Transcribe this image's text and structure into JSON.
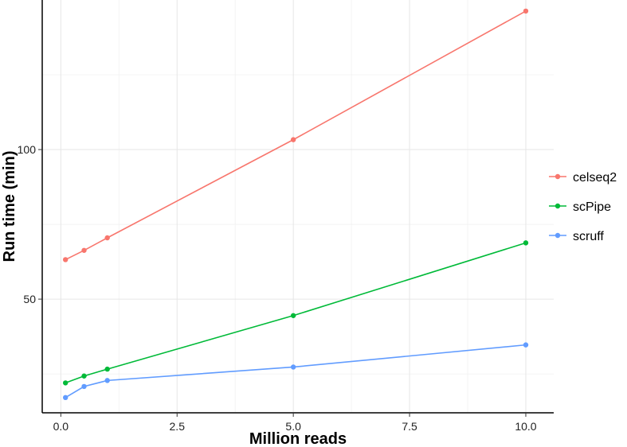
{
  "chart_data": {
    "type": "line",
    "title": "",
    "xlabel": "Million reads",
    "ylabel": "Run time (min)",
    "xlim": [
      -0.4,
      10.6
    ],
    "ylim": [
      12,
      150
    ],
    "xticks": [
      0.0,
      2.5,
      5.0,
      7.5,
      10.0
    ],
    "xtick_labels": [
      "0.0",
      "2.5",
      "5.0",
      "7.5",
      "10.0"
    ],
    "yticks": [
      50,
      100
    ],
    "ytick_labels": [
      "50",
      "100"
    ],
    "grid": true,
    "legend_position": "right",
    "series": [
      {
        "name": "celseq2",
        "color": "#F8766D",
        "x": [
          0.1,
          0.5,
          1.0,
          5.0,
          10.0
        ],
        "y": [
          63.2,
          66.3,
          70.5,
          103.3,
          146.3
        ]
      },
      {
        "name": "scPipe",
        "color": "#00BA38",
        "x": [
          0.1,
          0.5,
          1.0,
          5.0,
          10.0
        ],
        "y": [
          22.0,
          24.3,
          26.6,
          44.5,
          68.8
        ]
      },
      {
        "name": "scruff",
        "color": "#619CFF",
        "x": [
          0.1,
          0.5,
          1.0,
          5.0,
          10.0
        ],
        "y": [
          17.1,
          20.8,
          22.8,
          27.3,
          34.7
        ]
      }
    ]
  }
}
